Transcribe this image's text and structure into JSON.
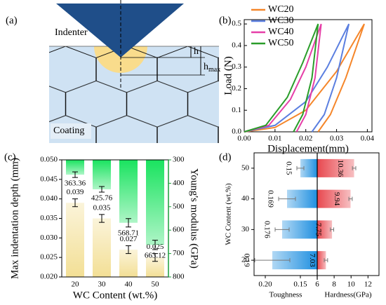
{
  "diagram": {
    "label": "(a)",
    "indenter": "Indenter",
    "h": "h",
    "hmax": {
      "base": "h",
      "sub": "max"
    },
    "coating": "Coating"
  },
  "chart_data": [
    {
      "type": "line",
      "label": "(b)",
      "xlabel": "Displacement(mm)",
      "ylabel": "Load (N)",
      "xlim": [
        0,
        0.0415
      ],
      "xticks": [
        {
          "value": 0,
          "label": "0.00"
        },
        {
          "value": 0.01,
          "label": "0.01"
        },
        {
          "value": 0.02,
          "label": "0.02"
        },
        {
          "value": 0.03,
          "label": "0.03"
        },
        {
          "value": 0.04,
          "label": "0.04"
        }
      ],
      "ylim": [
        0,
        0.52
      ],
      "yticks": [
        {
          "value": 0,
          "label": "0.0"
        },
        0.1,
        0.2,
        0.3,
        0.4,
        0.5
      ],
      "legend": "upper left",
      "series": [
        {
          "name": "WC20",
          "color": "#f5862a",
          "x": [
            0,
            0.01,
            0.02,
            0.03,
            0.039,
            0.033,
            0.028,
            0.024
          ],
          "values": [
            0,
            0.02,
            0.1,
            0.28,
            0.5,
            0.25,
            0.08,
            0
          ]
        },
        {
          "name": "WC30",
          "color": "#5b7fe0",
          "x": [
            0,
            0.01,
            0.02,
            0.027,
            0.034,
            0.03,
            0.026,
            0.022
          ],
          "values": [
            0,
            0.03,
            0.14,
            0.3,
            0.5,
            0.25,
            0.08,
            0
          ]
        },
        {
          "name": "WC40",
          "color": "#e63fa8",
          "x": [
            0,
            0.008,
            0.015,
            0.02,
            0.025,
            0.023,
            0.02,
            0.017
          ],
          "values": [
            0,
            0.03,
            0.15,
            0.3,
            0.5,
            0.25,
            0.08,
            0
          ]
        },
        {
          "name": "WC50",
          "color": "#2a9d2a",
          "x": [
            0,
            0.007,
            0.014,
            0.019,
            0.024,
            0.022,
            0.019,
            0.016
          ],
          "values": [
            0,
            0.03,
            0.16,
            0.32,
            0.5,
            0.25,
            0.08,
            0
          ]
        }
      ]
    },
    {
      "type": "bar",
      "label": "(c)",
      "categories": [
        "20",
        "30",
        "40",
        "50"
      ],
      "xlabel": "WC Content (wt.%)",
      "ylabel": "Max indentation depth (mm)",
      "y2label": "Young's modulus (GPa)",
      "ylim": [
        0.02,
        0.05
      ],
      "yticks": [
        {
          "value": 0.02,
          "label": "0.020"
        },
        {
          "value": 0.025,
          "label": "0.025"
        },
        {
          "value": 0.03,
          "label": "0.030"
        },
        {
          "value": 0.035,
          "label": "0.035"
        },
        {
          "value": 0.04,
          "label": "0.040"
        },
        {
          "value": 0.045,
          "label": "0.045"
        },
        {
          "value": 0.05,
          "label": "0.050"
        }
      ],
      "y2lim": [
        800,
        300
      ],
      "y2ticks": [
        300,
        400,
        500,
        600,
        700,
        800
      ],
      "y2color": "#1a9d3a",
      "series": [
        {
          "color": "#f3df95",
          "values": [
            0.039,
            0.035,
            0.027,
            0.025
          ],
          "errors": [
            0.001,
            0.001,
            0.001,
            0.001
          ]
        },
        {
          "axis": "y2",
          "color": "#19e35f",
          "values": [
            363.36,
            425.76,
            568.71,
            663.12
          ],
          "errors": [
            12,
            12,
            18,
            20
          ]
        }
      ]
    },
    {
      "type": "butterfly",
      "label": "(d)",
      "categories": [
        "50",
        "40",
        "30",
        "20"
      ],
      "ylabel": "WC Content (wt.%)",
      "series": [
        {
          "name": "Toughness",
          "color": "#1e8fe0",
          "values": [
            0.15,
            0.169,
            0.176,
            0.19
          ],
          "errors": [
            0.005,
            0.012,
            0.01,
            0.025
          ],
          "xlim": [
            0.216,
            0.126
          ],
          "xticks": [
            {
              "value": 0.2,
              "label": "0.20"
            },
            0.15
          ]
        },
        {
          "name": "Hardness(GPa)",
          "color": "#e8484f",
          "values": [
            10.36,
            9.94,
            7.75,
            7.03
          ],
          "errors": [
            0.2,
            0.2,
            0.2,
            0.2
          ],
          "xlim": [
            6,
            13.3
          ],
          "xticks": [
            6,
            8,
            10,
            12
          ]
        }
      ]
    }
  ]
}
